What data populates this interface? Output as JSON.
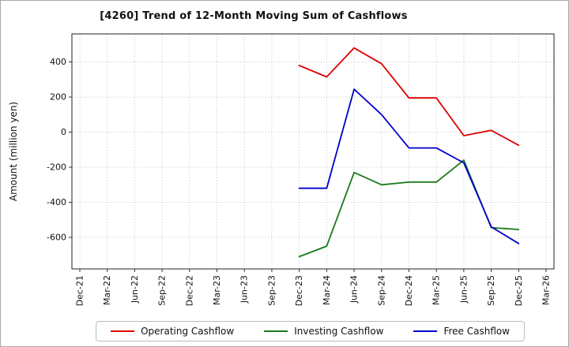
{
  "chart_data": {
    "type": "line",
    "title": "[4260]  Trend of 12-Month Moving Sum of Cashflows",
    "xlabel": "",
    "ylabel": "Amount (million yen)",
    "ylim": [
      -780,
      560
    ],
    "yticks": [
      -600,
      -400,
      -200,
      0,
      200,
      400
    ],
    "grid": true,
    "legend_position": "bottom",
    "categories": [
      "Dec-21",
      "Mar-22",
      "Jun-22",
      "Sep-22",
      "Dec-22",
      "Mar-23",
      "Jun-23",
      "Sep-23",
      "Dec-23",
      "Mar-24",
      "Jun-24",
      "Sep-24",
      "Dec-24",
      "Mar-25",
      "Jun-25",
      "Sep-25",
      "Dec-25",
      "Mar-26"
    ],
    "series": [
      {
        "name": "Operating Cashflow",
        "color": "#dd0000",
        "values": [
          null,
          null,
          null,
          null,
          null,
          null,
          null,
          null,
          380,
          315,
          480,
          390,
          195,
          195,
          -20,
          10,
          -75,
          null
        ]
      },
      {
        "name": "Investing Cashflow",
        "color": "#1a7a1a",
        "values": [
          null,
          null,
          null,
          null,
          null,
          null,
          null,
          null,
          -710,
          -650,
          -230,
          -300,
          -285,
          -285,
          -160,
          -545,
          -555,
          null
        ]
      },
      {
        "name": "Free Cashflow",
        "color": "#0000cc",
        "values": [
          null,
          null,
          null,
          null,
          null,
          null,
          null,
          null,
          -320,
          -320,
          245,
          100,
          -90,
          -90,
          -175,
          -540,
          -635,
          null
        ]
      }
    ]
  }
}
